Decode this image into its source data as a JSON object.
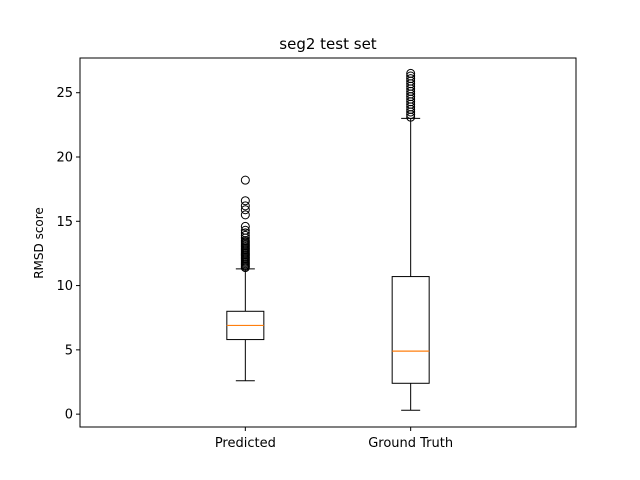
{
  "chart_data": {
    "type": "boxplot",
    "title": "seg2 test set",
    "xlabel": "",
    "ylabel": "RMSD score",
    "ylim": [
      -1.0,
      27.7
    ],
    "yticks": [
      0,
      5,
      10,
      15,
      20,
      25
    ],
    "grid": false,
    "categories": [
      "Predicted",
      "Ground Truth"
    ],
    "series": [
      {
        "category": "Predicted",
        "whisker_low": 2.6,
        "q1": 5.8,
        "median": 6.9,
        "q3": 8.0,
        "whisker_high": 11.3,
        "outliers": [
          11.4,
          11.5,
          11.6,
          11.7,
          11.8,
          11.9,
          12.0,
          12.1,
          12.2,
          12.3,
          12.4,
          12.5,
          12.6,
          12.7,
          12.8,
          12.9,
          13.0,
          13.1,
          13.2,
          13.3,
          13.4,
          13.5,
          13.7,
          13.9,
          14.1,
          14.3,
          14.6,
          15.5,
          15.9,
          16.2,
          16.6,
          18.2
        ]
      },
      {
        "category": "Ground Truth",
        "whisker_low": 0.3,
        "q1": 2.4,
        "median": 4.9,
        "q3": 10.7,
        "whisker_high": 23.0,
        "outliers": [
          23.1,
          23.3,
          23.5,
          23.7,
          23.9,
          24.1,
          24.3,
          24.5,
          24.7,
          24.9,
          25.1,
          25.3,
          25.5,
          25.7,
          25.9,
          26.1,
          26.3,
          26.5
        ]
      }
    ],
    "colors": {
      "box": "#000000",
      "median": "#ff7f0e",
      "outlier": "#000000"
    }
  }
}
